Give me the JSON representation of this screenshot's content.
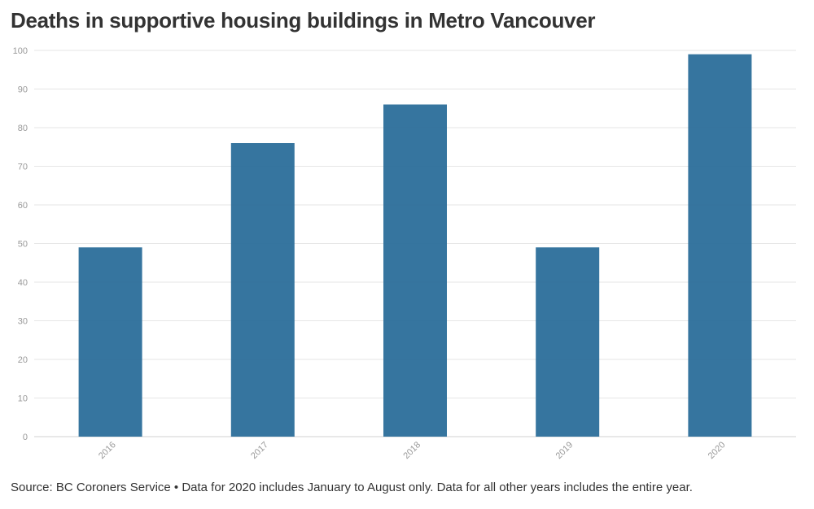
{
  "title": "Deaths in supportive housing buildings in Metro Vancouver",
  "source": "Source: BC Coroners Service • Data for 2020 includes January to August only. Data for all other years includes the entire year.",
  "colors": {
    "bar": "#2b6e9a",
    "grid": "#e6e6e6",
    "tick": "#999999"
  },
  "chart_data": {
    "type": "bar",
    "categories": [
      "2016",
      "2017",
      "2018",
      "2019",
      "2020"
    ],
    "values": [
      49,
      76,
      86,
      49,
      99
    ],
    "yticks": [
      0,
      10,
      20,
      30,
      40,
      50,
      60,
      70,
      80,
      90,
      100
    ],
    "ylim": [
      0,
      100
    ],
    "grid": true,
    "legend": "none"
  }
}
